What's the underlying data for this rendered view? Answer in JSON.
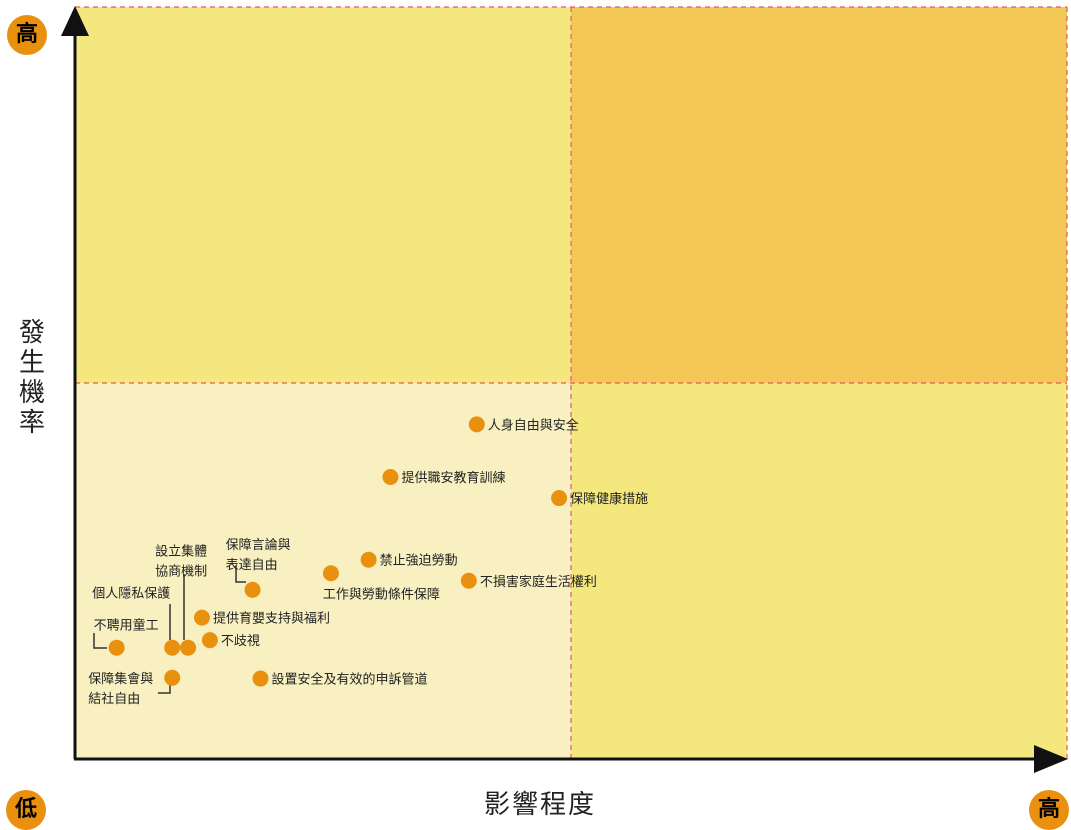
{
  "labels": {
    "y_high": "高",
    "x_low": "低",
    "x_high": "高",
    "y_title": "發生機率",
    "x_title": "影響程度"
  },
  "colors": {
    "q_bottom_left": "#f8f0c0",
    "q_top_left": "#f3e77d",
    "q_top_right": "#f3c755",
    "q_bottom_right": "#f3e77d",
    "point": "#e9900f",
    "badge": "#e9900f",
    "divider": "#e05a6a"
  },
  "chart_data": {
    "type": "scatter",
    "xlabel": "影響程度",
    "ylabel": "發生機率",
    "xlim": [
      0,
      100
    ],
    "ylim": [
      0,
      100
    ],
    "quadrant_split": {
      "x": 50,
      "y": 50
    },
    "points": [
      {
        "label": "人身自由與安全",
        "x": 40.5,
        "y": 44.5
      },
      {
        "label": "提供職安教育訓練",
        "x": 31.8,
        "y": 37.5
      },
      {
        "label": "保障健康措施",
        "x": 48.8,
        "y": 34.7
      },
      {
        "label": "禁止強迫勞動",
        "x": 29.6,
        "y": 26.5
      },
      {
        "label": "工作與勞動條件保障",
        "x": 25.8,
        "y": 24.7
      },
      {
        "label": "不損害家庭生活權利",
        "x": 39.7,
        "y": 23.7
      },
      {
        "label": "保障言論與表達自由",
        "x": 17.9,
        "y": 22.5
      },
      {
        "label": "提供育嬰支持與福利",
        "x": 12.8,
        "y": 18.8
      },
      {
        "label": "設立集體協商機制",
        "x": 11.4,
        "y": 14.8
      },
      {
        "label": "個人隱私保護",
        "x": 9.8,
        "y": 14.8
      },
      {
        "label": "不歧視",
        "x": 13.6,
        "y": 15.8
      },
      {
        "label": "不聘用童工",
        "x": 4.2,
        "y": 14.8
      },
      {
        "label": "保障集會與結社自由",
        "x": 9.8,
        "y": 10.8
      },
      {
        "label": "設置安全及有效的申訴管道",
        "x": 18.7,
        "y": 10.7
      }
    ]
  }
}
